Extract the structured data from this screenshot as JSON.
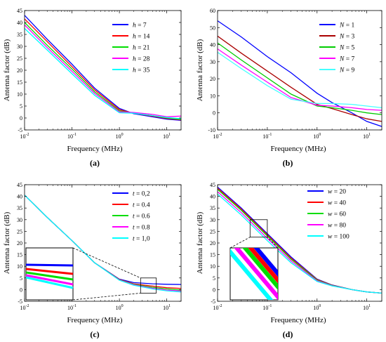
{
  "chart_data": [
    {
      "panel": "(a)",
      "type": "line",
      "xscale": "log",
      "xlim": [
        0.01,
        20
      ],
      "ylim": [
        -5,
        45
      ],
      "xticks": [
        0.01,
        0.1,
        1,
        10
      ],
      "xticklabels": [
        "10-2",
        "10-1",
        "100",
        "101"
      ],
      "yticks": [
        -5,
        0,
        5,
        10,
        15,
        20,
        25,
        30,
        35,
        40,
        45
      ],
      "xlabel": "Frequency (MHz)",
      "ylabel": "Antenna factor (dB)",
      "legend_position": "top-right",
      "x": [
        0.01,
        0.03,
        0.1,
        0.3,
        1,
        2,
        5,
        10,
        20
      ],
      "series": [
        {
          "var": "h",
          "val": "7",
          "name": "h = 7",
          "color": "#0000ff",
          "values": [
            43,
            33,
            22.5,
            12.5,
            4,
            1.8,
            0.5,
            -0.5,
            -1
          ]
        },
        {
          "var": "h",
          "val": "14",
          "name": "h = 14",
          "color": "#ff0000",
          "values": [
            41.5,
            32,
            21.5,
            11.8,
            3.5,
            2.0,
            0.8,
            -0.2,
            -0.8
          ]
        },
        {
          "var": "h",
          "val": "21",
          "name": "h = 21",
          "color": "#00dd00",
          "values": [
            40,
            30.5,
            20.5,
            11,
            3,
            2.1,
            1.0,
            0.0,
            -0.6
          ]
        },
        {
          "var": "h",
          "val": "28",
          "name": "h = 28",
          "color": "#ff00ff",
          "values": [
            39,
            29.5,
            19.5,
            10.3,
            2.6,
            2.3,
            1.5,
            0.5,
            0.8
          ]
        },
        {
          "var": "h",
          "val": "35",
          "name": "h = 35",
          "color": "#00ffff",
          "values": [
            37.5,
            28.5,
            18.5,
            9.5,
            2.2,
            2.0,
            1.0,
            0.2,
            -0.3
          ]
        }
      ],
      "caption": "(a)"
    },
    {
      "panel": "(b)",
      "type": "line",
      "xscale": "log",
      "xlim": [
        0.01,
        20
      ],
      "ylim": [
        -10,
        60
      ],
      "xticks": [
        0.01,
        0.1,
        1,
        10
      ],
      "xticklabels": [
        "10-2",
        "10-1",
        "100",
        "101"
      ],
      "yticks": [
        -10,
        0,
        10,
        20,
        30,
        40,
        50,
        60
      ],
      "xlabel": "Frequency (MHz)",
      "ylabel": "Antenna factor (dB)",
      "legend_position": "top-right",
      "x": [
        0.01,
        0.03,
        0.1,
        0.3,
        1,
        2,
        5,
        10,
        20
      ],
      "series": [
        {
          "var": "N",
          "val": "1",
          "name": "N = 1",
          "color": "#0000ff",
          "values": [
            54,
            44.5,
            33,
            23.5,
            11.5,
            6,
            0,
            -5,
            -8
          ]
        },
        {
          "var": "N",
          "val": "3",
          "name": "N = 3",
          "color": "#aa0000",
          "values": [
            45,
            35,
            24.5,
            15,
            5,
            2.5,
            -1,
            -3.5,
            -5
          ]
        },
        {
          "var": "N",
          "val": "5",
          "name": "N = 5",
          "color": "#00cc00",
          "values": [
            41,
            31,
            20.5,
            11,
            4,
            3,
            1.5,
            0,
            -1
          ]
        },
        {
          "var": "N",
          "val": "7",
          "name": "N = 7",
          "color": "#ff00ff",
          "values": [
            37.5,
            28,
            18,
            9,
            4.5,
            4,
            3,
            2,
            1.5
          ]
        },
        {
          "var": "N",
          "val": "9",
          "name": "N = 9",
          "color": "#44ffff",
          "values": [
            35.5,
            26,
            16,
            8,
            5.5,
            5.5,
            5,
            4,
            3
          ]
        }
      ],
      "caption": "(b)"
    },
    {
      "panel": "(c)",
      "type": "line",
      "xscale": "log",
      "xlim": [
        0.01,
        20
      ],
      "ylim": [
        -5,
        45
      ],
      "xticks": [
        0.01,
        0.1,
        1,
        10
      ],
      "xticklabels": [
        "10-2",
        "10-1",
        "100",
        "101"
      ],
      "yticks": [
        -5,
        0,
        5,
        10,
        15,
        20,
        25,
        30,
        35,
        40,
        45
      ],
      "xlabel": "Frequency (MHz)",
      "ylabel": "Antenna factor (dB)",
      "legend_position": "top-right",
      "inset": "zoom box around 3–6 MHz",
      "x": [
        0.01,
        0.03,
        0.1,
        0.3,
        1,
        2,
        5,
        10,
        20
      ],
      "series": [
        {
          "var": "t",
          "val": "0,2",
          "name": "t = 0,2",
          "color": "#0000ff",
          "values": [
            40.5,
            31,
            21,
            11.5,
            4.5,
            3,
            2.5,
            2.3,
            2.2
          ]
        },
        {
          "var": "t",
          "val": "0.4",
          "name": "t = 0.4",
          "color": "#ff0000",
          "values": [
            40.5,
            31,
            21,
            11.5,
            4.3,
            2.5,
            1.5,
            0.8,
            0.5
          ]
        },
        {
          "var": "t",
          "val": "0.6",
          "name": "t = 0.6",
          "color": "#00dd00",
          "values": [
            40.5,
            31,
            21,
            11.5,
            4.2,
            2.3,
            1.0,
            0.3,
            -0.2
          ]
        },
        {
          "var": "t",
          "val": "0.8",
          "name": "t = 0.8",
          "color": "#ff00ff",
          "values": [
            40.5,
            31,
            21,
            11.5,
            4.1,
            2.1,
            0.6,
            -0.2,
            -0.6
          ]
        },
        {
          "var": "t",
          "val": "1,0",
          "name": "t = 1,0",
          "color": "#00ffff",
          "values": [
            40.5,
            31,
            21,
            11.5,
            4.0,
            1.9,
            0.3,
            -0.5,
            -1.0
          ]
        }
      ],
      "caption": "(c)"
    },
    {
      "panel": "(d)",
      "type": "line",
      "xscale": "log",
      "xlim": [
        0.01,
        20
      ],
      "ylim": [
        -5,
        45
      ],
      "xticks": [
        0.01,
        0.1,
        1,
        10
      ],
      "xticklabels": [
        "10-2",
        "10-1",
        "100",
        "101"
      ],
      "yticks": [
        -5,
        0,
        5,
        10,
        15,
        20,
        25,
        30,
        35,
        40,
        45
      ],
      "xlabel": "Frequency (MHz)",
      "ylabel": "Antenna factor (dB)",
      "legend_position": "top-right",
      "inset": "zoom box around 0.05–0.1 MHz",
      "x": [
        0.01,
        0.03,
        0.1,
        0.3,
        1,
        2,
        5,
        10,
        20
      ],
      "series": [
        {
          "var": "w",
          "val": "20",
          "name": "w = 20",
          "color": "#0000ff",
          "values": [
            44,
            35,
            24,
            14,
            4.5,
            2,
            0,
            -1,
            -1.5
          ]
        },
        {
          "var": "w",
          "val": "40",
          "name": "w = 40",
          "color": "#ff0000",
          "values": [
            43.5,
            34.5,
            23.5,
            13.5,
            4.3,
            1.9,
            0,
            -1,
            -1.5
          ]
        },
        {
          "var": "w",
          "val": "60",
          "name": "w = 60",
          "color": "#00dd00",
          "values": [
            43,
            34,
            23,
            13,
            4.1,
            1.8,
            0,
            -1,
            -1.5
          ]
        },
        {
          "var": "w",
          "val": "80",
          "name": "w = 80",
          "color": "#ff00ff",
          "values": [
            42,
            33,
            22,
            12.3,
            3.8,
            1.7,
            0,
            -1,
            -1.5
          ]
        },
        {
          "var": "w",
          "val": "100",
          "name": "w = 100",
          "color": "#00ffff",
          "values": [
            41,
            32,
            21,
            11.5,
            3.5,
            1.6,
            0,
            -1,
            -1.5
          ]
        }
      ],
      "caption": "(d)"
    }
  ]
}
